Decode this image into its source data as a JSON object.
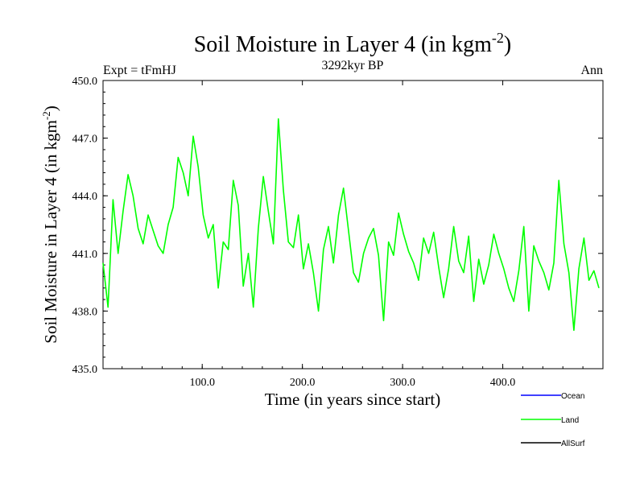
{
  "chart_data": {
    "type": "line",
    "title_main": "Soil Moisture in Layer 4 (in kgm",
    "title_sup": "-2",
    "title_close": ")",
    "subtitle_left": "Expt = tFmHJ",
    "subtitle_center": "3292kyr BP",
    "subtitle_right": "Ann",
    "xlabel": "Time (in years since start)",
    "ylabel_main": "Soil Moisture in Layer 4 (in kgm",
    "ylabel_sup": "-2",
    "ylabel_close": ")",
    "xlim": [
      1,
      500
    ],
    "ylim": [
      435.0,
      450.0
    ],
    "xticks": [
      100,
      200,
      300,
      400
    ],
    "xtick_labels": [
      "100.0",
      "200.0",
      "300.0",
      "400.0"
    ],
    "yticks": [
      435,
      438,
      441,
      444,
      447,
      450
    ],
    "ytick_labels": [
      "435.0",
      "438.0",
      "441.0",
      "444.0",
      "447.0",
      "450.0"
    ],
    "legend": [
      {
        "name": "Ocean",
        "color": "#0000ff"
      },
      {
        "name": "Land",
        "color": "#00ff00"
      },
      {
        "name": "AllSurf",
        "color": "#000000"
      }
    ],
    "series": [
      {
        "name": "Land",
        "color": "#00ff00",
        "x_start": 1,
        "x_step": 5,
        "values": [
          440.5,
          438.2,
          443.8,
          441.0,
          443.2,
          445.1,
          444.0,
          442.3,
          441.5,
          443.0,
          442.2,
          441.4,
          441.0,
          442.5,
          443.4,
          446.0,
          445.2,
          444.0,
          447.1,
          445.5,
          443.0,
          441.8,
          442.5,
          439.2,
          441.6,
          441.2,
          444.8,
          443.5,
          439.3,
          441.0,
          438.2,
          442.3,
          445.0,
          443.2,
          441.5,
          448.0,
          444.3,
          441.6,
          441.3,
          443.0,
          440.2,
          441.5,
          440.0,
          438.0,
          441.2,
          442.4,
          440.5,
          443.0,
          444.4,
          442.2,
          440.0,
          439.5,
          441.0,
          441.8,
          442.3,
          440.9,
          437.5,
          441.6,
          440.9,
          443.1,
          442.0,
          441.1,
          440.5,
          439.6,
          441.8,
          441.0,
          442.1,
          440.3,
          438.7,
          440.2,
          442.4,
          440.6,
          440.0,
          441.9,
          438.5,
          440.7,
          439.4,
          440.4,
          442.0,
          441.0,
          440.2,
          439.2,
          438.5,
          440.1,
          442.4,
          438.0,
          441.4,
          440.6,
          440.0,
          439.1,
          440.5,
          444.8,
          441.5,
          440.0,
          437.0,
          440.2,
          441.8,
          439.6,
          440.1,
          439.2
        ]
      }
    ]
  }
}
